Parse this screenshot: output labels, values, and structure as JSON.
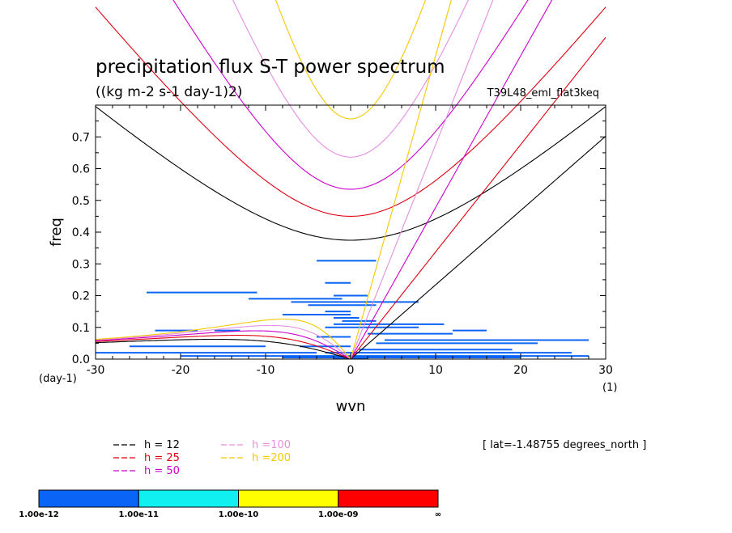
{
  "chart_data": {
    "type": "heatmap",
    "title": "precipitation flux S-T power spectrum",
    "subtitle": "((kg m-2 s-1 day-1)2)",
    "run_label": "T39L48_eml_flat3keq",
    "xlabel": "wvn",
    "ylabel": "freq",
    "x_unit_label": "(1)",
    "y_unit_label": "(day-1)",
    "xlim": [
      -30,
      30
    ],
    "ylim": [
      0,
      0.8
    ],
    "xticks": [
      "-30",
      "-20",
      "-10",
      "0",
      "10",
      "20",
      "30"
    ],
    "yticks": [
      "0.0",
      "0.1",
      "0.2",
      "0.3",
      "0.4",
      "0.5",
      "0.6",
      "0.7"
    ],
    "lat_label": "[ lat=-1.48755 degrees_north ]",
    "dispersion_curves": [
      {
        "label": "h = 12",
        "h": 12,
        "color": "#000000"
      },
      {
        "label": "h = 25",
        "h": 25,
        "color": "#e0000f"
      },
      {
        "label": "h = 50",
        "h": 50,
        "color": "#cc00cc"
      },
      {
        "label": "h =100",
        "h": 100,
        "color": "#e58fe0"
      },
      {
        "label": "h =200",
        "h": 200,
        "color": "#f5c800"
      }
    ],
    "colorbar": {
      "labels": [
        "1.00e-12",
        "1.00e-11",
        "1.00e-10",
        "1.00e-09",
        "∞"
      ],
      "colors": [
        "#0a64f5",
        "#10f0f0",
        "#ffff00",
        "#ff0000"
      ]
    },
    "power_segments": [
      {
        "x0": -24,
        "x1": -11,
        "y": 0.21
      },
      {
        "x0": -4,
        "x1": 3,
        "y": 0.31
      },
      {
        "x0": -3,
        "x1": 0,
        "y": 0.24
      },
      {
        "x0": -2,
        "x1": 2,
        "y": 0.2
      },
      {
        "x0": -12,
        "x1": -1,
        "y": 0.19
      },
      {
        "x0": -7,
        "x1": 8,
        "y": 0.18
      },
      {
        "x0": -5,
        "x1": 3,
        "y": 0.17
      },
      {
        "x0": -3,
        "x1": 0,
        "y": 0.15
      },
      {
        "x0": -8,
        "x1": 0,
        "y": 0.14
      },
      {
        "x0": -2,
        "x1": 1,
        "y": 0.13
      },
      {
        "x0": -1,
        "x1": 3,
        "y": 0.12
      },
      {
        "x0": -2,
        "x1": 11,
        "y": 0.11
      },
      {
        "x0": -23,
        "x1": -18,
        "y": 0.09
      },
      {
        "x0": -16,
        "x1": -13,
        "y": 0.09
      },
      {
        "x0": -3,
        "x1": 8,
        "y": 0.1
      },
      {
        "x0": 12,
        "x1": 16,
        "y": 0.09
      },
      {
        "x0": 2,
        "x1": 12,
        "y": 0.08
      },
      {
        "x0": -4,
        "x1": 0,
        "y": 0.07
      },
      {
        "x0": 4,
        "x1": 28,
        "y": 0.06
      },
      {
        "x0": 3,
        "x1": 22,
        "y": 0.05
      },
      {
        "x0": -26,
        "x1": -10,
        "y": 0.04
      },
      {
        "x0": -6,
        "x1": 0,
        "y": 0.04
      },
      {
        "x0": 1,
        "x1": 19,
        "y": 0.03
      },
      {
        "x0": -30,
        "x1": -4,
        "y": 0.02
      },
      {
        "x0": -3,
        "x1": 26,
        "y": 0.02
      },
      {
        "x0": -20,
        "x1": 28,
        "y": 0.01
      },
      {
        "x0": -8,
        "x1": 20,
        "y": 0.005
      },
      {
        "x0": -2,
        "x1": 2,
        "y": 0.002
      }
    ]
  }
}
